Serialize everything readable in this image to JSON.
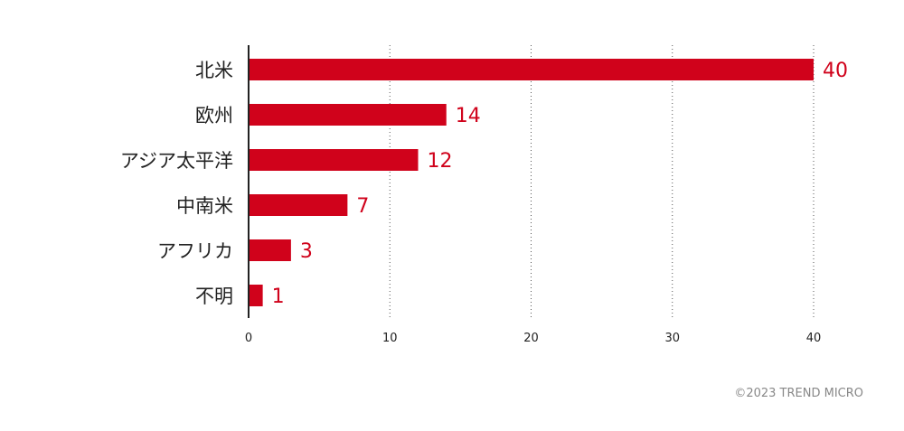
{
  "chart_data": {
    "type": "bar",
    "orientation": "horizontal",
    "categories": [
      "北米",
      "欧州",
      "アジア太平洋",
      "中南米",
      "アフリカ",
      "不明"
    ],
    "values": [
      40,
      14,
      12,
      7,
      3,
      1
    ],
    "xlim": [
      0,
      40
    ],
    "xticks": [
      0,
      10,
      20,
      30,
      40
    ],
    "grid": "vertical-dotted",
    "title": "",
    "xlabel": "",
    "ylabel": "",
    "bar_color": "#d0021b",
    "value_label_color": "#d0021b"
  },
  "footer": {
    "copyright": "©2023 TREND MICRO"
  }
}
